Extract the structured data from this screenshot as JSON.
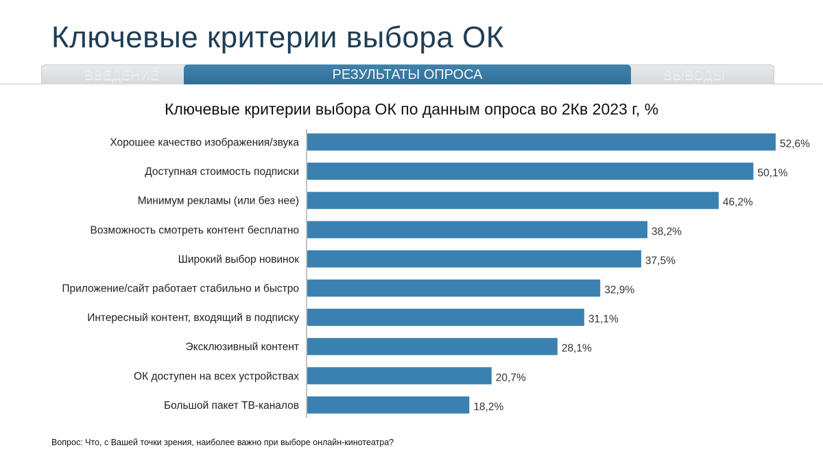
{
  "slide": {
    "title": "Ключевые критерии выбора ОК",
    "footnote": "Вопрос: Что, с Вашей точки зрения, наиболее важно при выборе онлайн-кинотеатра?"
  },
  "tabs": {
    "intro": "ВВЕДЕНИЕ",
    "results": "РЕЗУЛЬТАТЫ ОПРОСА",
    "conclusions": "ВЫВОДЫ",
    "active": "results"
  },
  "colors": {
    "bar": "#3a81b1",
    "title": "#1f3d54",
    "tab_active": "#3279a5"
  },
  "chart_data": {
    "type": "bar",
    "orientation": "horizontal",
    "title": "Ключевые критерии выбора ОК по данным опроса во 2Кв 2023 г, %",
    "categories": [
      "Хорошее качество изображения/звука",
      "Доступная стоимость подписки",
      "Минимум рекламы (или без нее)",
      "Возможность смотреть контент бесплатно",
      "Широкий выбор новинок",
      "Приложение/сайт работает стабильно и быстро",
      "Интересный контент, входящий в подписку",
      "Эксклюзивный контент",
      "ОК доступен на всех устройствах",
      "Большой пакет ТВ-каналов"
    ],
    "values": [
      52.6,
      50.1,
      46.2,
      38.2,
      37.5,
      32.9,
      31.1,
      28.1,
      20.7,
      18.2
    ],
    "value_labels": [
      "52,6%",
      "50,1%",
      "46,2%",
      "38,2%",
      "37,5%",
      "32,9%",
      "31,1%",
      "28,1%",
      "20,7%",
      "18,2%"
    ],
    "xlim": [
      0,
      52.6
    ],
    "grid": false,
    "legend": "none"
  }
}
